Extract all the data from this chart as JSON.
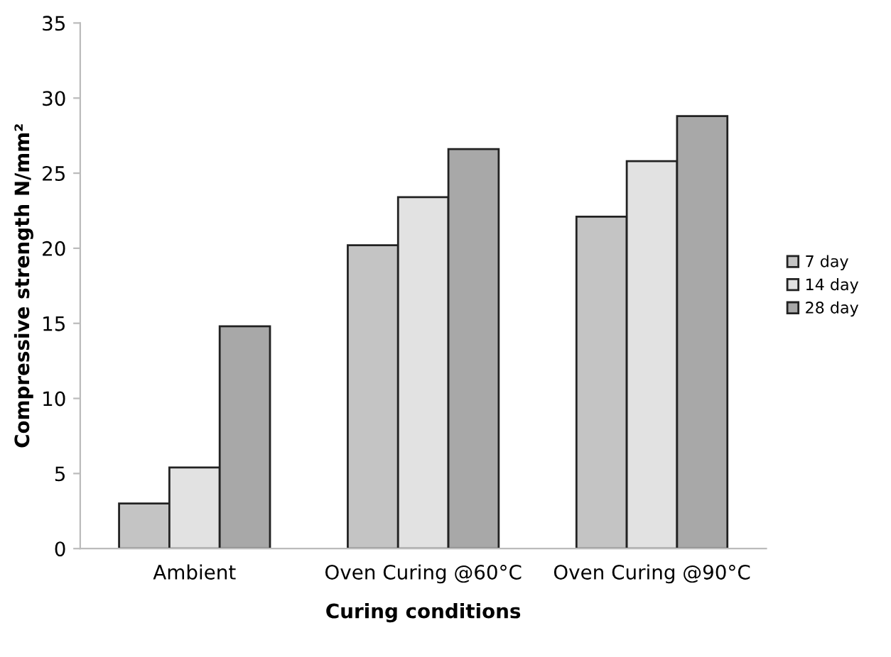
{
  "chart_data": {
    "type": "bar",
    "xlabel": "Curing conditions",
    "ylabel": "Compressive strength N/mm²",
    "categories": [
      "Ambient",
      "Oven Curing @60°C",
      "Oven Curing @90°C"
    ],
    "series": [
      {
        "name": "7 day",
        "color": "#c4c4c4",
        "values": [
          3.0,
          20.2,
          22.1
        ]
      },
      {
        "name": "14 day",
        "color": "#e2e2e2",
        "values": [
          5.4,
          23.4,
          25.8
        ]
      },
      {
        "name": "28 day",
        "color": "#a8a8a8",
        "values": [
          14.8,
          26.6,
          28.8
        ]
      }
    ],
    "ylim": [
      0,
      35
    ],
    "yticks": [
      0,
      5,
      10,
      15,
      20,
      25,
      30,
      35
    ],
    "grid": false,
    "legend": "right"
  }
}
